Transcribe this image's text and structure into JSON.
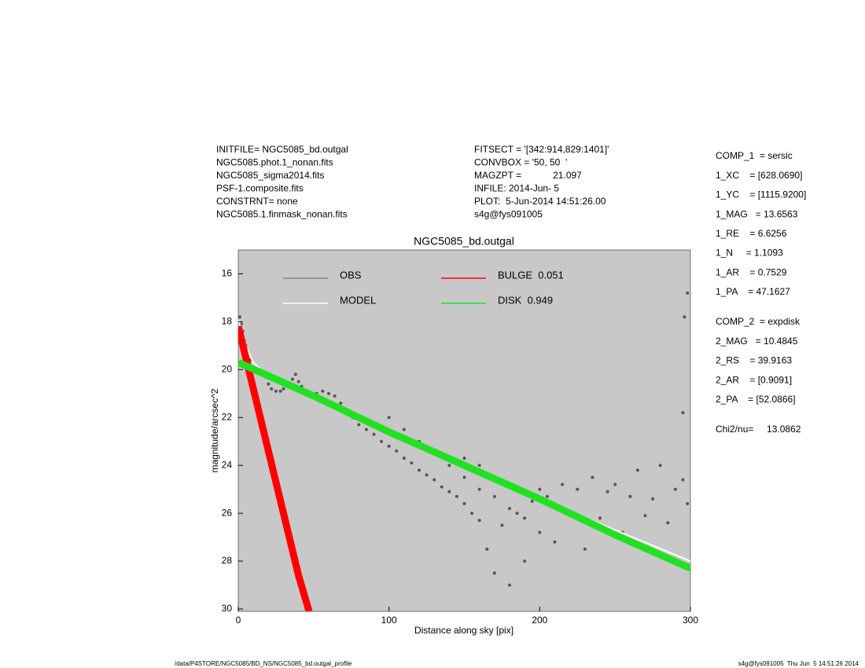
{
  "header": {
    "left": [
      "INITFILE= NGC5085_bd.outgal",
      "NGC5085.phot.1_nonan.fits",
      "NGC5085_sigma2014.fits",
      "PSF-1.composite.fits",
      "CONSTRNT= none",
      "NGC5085.1.finmask_nonan.fits"
    ],
    "middle": [
      "FITSECT = '[342:914,829:1401]'",
      "CONVBOX = '50, 50  '",
      "MAGZPT =            21.097",
      "INFILE: 2014-Jun- 5",
      "PLOT:  5-Jun-2014 14:51:26.00",
      "s4g@fys091005"
    ]
  },
  "params": [
    [
      "COMP_1  = sersic",
      "1_XC    = [628.0690]",
      "1_YC    = [1115.9200]",
      "1_MAG   = 13.6563",
      "1_RE    = 6.6256",
      "1_N     = 1.1093",
      "1_AR    = 0.7529",
      "1_PA    = 47.1627"
    ],
    [
      "COMP_2  = expdisk",
      "2_MAG   = 10.4845",
      "2_RS    = 39.9163",
      "2_AR    = [0.9091]",
      "2_PA    = [52.0866]"
    ],
    [
      "Chi2/nu=     13.0862"
    ]
  ],
  "footer": {
    "left": "/data/P4STORE/NGC5085/BD_NS/NGC5085_bd.outgal_profile",
    "right": "s4g@fys091005  Thu Jun  5 14:51:26 2014"
  },
  "chart_data": {
    "type": "scatter",
    "title": "NGC5085_bd.outgal",
    "xlabel": "Distance along sky [pix]",
    "ylabel": "magnitude/arcsec^2",
    "xlim": [
      0,
      300
    ],
    "xticks": [
      0,
      100,
      200,
      300
    ],
    "ylim": [
      30.1,
      15.0
    ],
    "yticks": [
      16,
      18,
      20,
      22,
      24,
      26,
      28,
      30
    ],
    "background": "#c8c8c8",
    "series": [
      {
        "name": "OBS",
        "color": "#555555",
        "style": "points",
        "x": [
          1,
          2,
          3,
          4,
          5,
          6,
          8,
          10,
          12,
          15,
          18,
          20,
          22,
          25,
          28,
          30,
          33,
          36,
          38,
          40,
          42,
          45,
          48,
          52,
          56,
          60,
          64,
          68,
          72,
          76,
          80,
          85,
          90,
          95,
          100,
          105,
          110,
          115,
          120,
          125,
          130,
          135,
          140,
          145,
          150,
          155,
          160,
          165,
          170,
          175,
          180,
          185,
          190,
          195,
          200,
          205,
          210,
          215,
          220,
          225,
          230,
          235,
          240,
          245,
          250,
          255,
          260,
          265,
          270,
          275,
          280,
          285,
          290,
          295,
          298,
          298,
          295,
          296,
          100,
          110,
          120,
          130,
          140,
          150,
          160,
          170,
          180,
          190,
          200,
          160,
          150
        ],
        "y": [
          17.8,
          18.1,
          18.4,
          18.8,
          19.0,
          19.3,
          19.6,
          19.9,
          20.0,
          20.1,
          20.3,
          20.6,
          20.8,
          20.9,
          20.9,
          20.8,
          20.6,
          20.4,
          20.2,
          20.5,
          20.7,
          20.9,
          21.1,
          21.0,
          20.9,
          21.0,
          21.1,
          21.4,
          21.8,
          22.0,
          22.3,
          22.5,
          22.7,
          23.0,
          23.2,
          23.4,
          23.7,
          23.9,
          24.2,
          24.4,
          24.6,
          24.9,
          25.1,
          25.3,
          25.6,
          26.0,
          26.3,
          27.5,
          28.5,
          26.5,
          29.0,
          26.0,
          28.0,
          25.5,
          26.8,
          25.3,
          27.2,
          24.8,
          26.0,
          25.0,
          27.5,
          24.5,
          26.2,
          25.1,
          24.8,
          26.8,
          25.3,
          24.2,
          26.1,
          25.4,
          24.0,
          26.4,
          25.0,
          24.6,
          16.8,
          25.6,
          21.8,
          17.8,
          22.0,
          22.5,
          23.0,
          23.5,
          24.0,
          24.5,
          25.0,
          25.3,
          25.8,
          26.2,
          25.0,
          24.0,
          23.7
        ]
      },
      {
        "name": "MODEL",
        "color": "#ffffff",
        "style": "line",
        "x": [
          0,
          5,
          10,
          15,
          20,
          30,
          50,
          100,
          150,
          200,
          250,
          300
        ],
        "y": [
          17.9,
          19.0,
          19.7,
          20.0,
          20.2,
          20.5,
          21.1,
          22.6,
          24.0,
          25.4,
          26.7,
          28.0
        ]
      },
      {
        "name": "BULGE  0.051",
        "color": "#ff0000",
        "style": "band",
        "x": [
          0,
          10,
          20,
          30,
          40,
          47
        ],
        "y": [
          18.2,
          20.8,
          23.4,
          26.0,
          28.6,
          30.1
        ]
      },
      {
        "name": "DISK  0.949",
        "color": "#22e022",
        "style": "band",
        "x": [
          0,
          50,
          100,
          150,
          200,
          250,
          300
        ],
        "y": [
          19.7,
          21.1,
          22.6,
          24.0,
          25.4,
          26.9,
          28.3
        ]
      }
    ]
  }
}
